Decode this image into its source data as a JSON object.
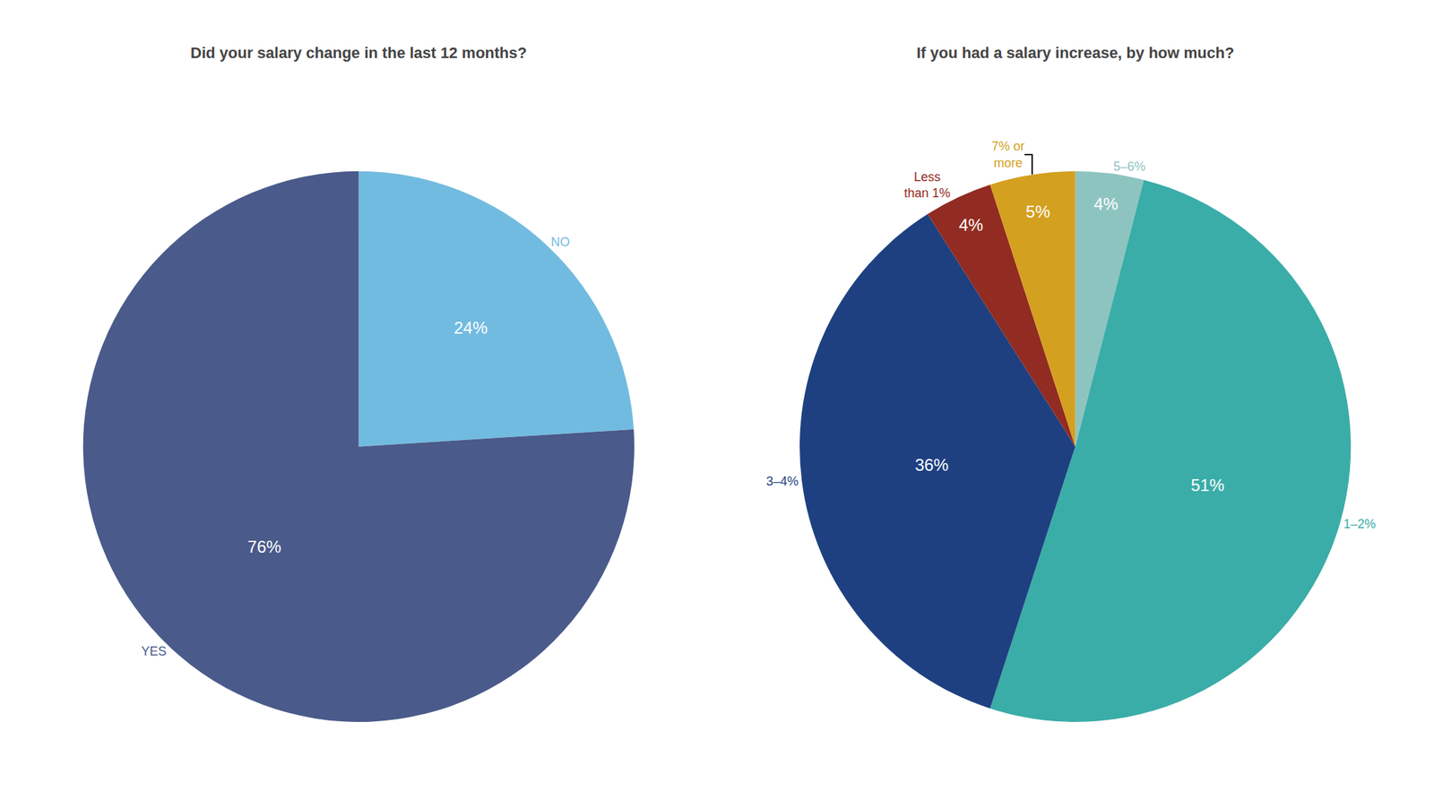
{
  "chart_data": [
    {
      "type": "pie",
      "title": "Did your salary change in the last 12 months?",
      "categories": [
        "NO",
        "YES"
      ],
      "values": [
        24,
        76
      ],
      "value_labels": [
        "24%",
        "76%"
      ],
      "colors": [
        "#72BBE0",
        "#4A5A8A"
      ],
      "data_labels": true
    },
    {
      "type": "pie",
      "title": "If you had a salary increase, by how much?",
      "categories": [
        "5–6%",
        "1–2%",
        "3–4%",
        "Less\nthan 1%",
        "7% or\nmore"
      ],
      "values": [
        4,
        51,
        36,
        4,
        5
      ],
      "value_labels": [
        "4%",
        "51%",
        "36%",
        "4%",
        "5%"
      ],
      "colors": [
        "#8EC4C0",
        "#3AADA8",
        "#1E4080",
        "#922B21",
        "#D4A020"
      ],
      "data_labels": true
    }
  ]
}
